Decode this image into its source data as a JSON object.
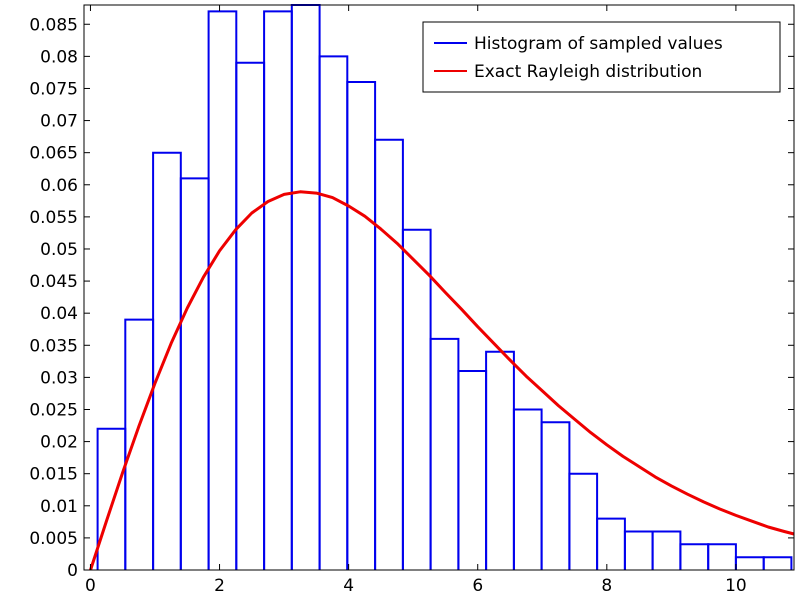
{
  "chart_data": {
    "type": "bar",
    "subtype": "step-histogram-with-density-curve",
    "title": "",
    "xlabel": "",
    "ylabel": "",
    "xlim": [
      -0.1,
      10.9
    ],
    "ylim": [
      0,
      0.088
    ],
    "xticks": [
      0,
      2,
      4,
      6,
      8,
      10
    ],
    "xtick_labels": [
      "0",
      "2",
      "4",
      "6",
      "8",
      "10"
    ],
    "yticks": [
      0,
      0.005,
      0.01,
      0.015,
      0.02,
      0.025,
      0.03,
      0.035,
      0.04,
      0.045,
      0.05,
      0.055,
      0.06,
      0.065,
      0.07,
      0.075,
      0.08,
      0.085
    ],
    "ytick_labels": [
      "0",
      "0.005",
      "0.01",
      "0.015",
      "0.02",
      "0.025",
      "0.03",
      "0.035",
      "0.04",
      "0.045",
      "0.05",
      "0.055",
      "0.06",
      "0.065",
      "0.07",
      "0.075",
      "0.08",
      "0.085"
    ],
    "grid": false,
    "legend_position": "top-right",
    "bin_edges": [
      0.11,
      0.54,
      0.97,
      1.4,
      1.83,
      2.26,
      2.69,
      3.12,
      3.55,
      3.98,
      4.41,
      4.84,
      5.27,
      5.7,
      6.13,
      6.56,
      6.99,
      7.42,
      7.85,
      8.28,
      8.71,
      9.14,
      9.57,
      10.0,
      10.43,
      10.86
    ],
    "series": [
      {
        "name": "Histogram of sampled values",
        "kind": "histogram",
        "color": "#0000ee",
        "values": [
          0.022,
          0.039,
          0.065,
          0.061,
          0.087,
          0.079,
          0.087,
          0.088,
          0.08,
          0.076,
          0.067,
          0.053,
          0.036,
          0.031,
          0.034,
          0.025,
          0.023,
          0.015,
          0.008,
          0.006,
          0.006,
          0.004,
          0.004,
          0.002,
          0.002
        ]
      },
      {
        "name": "Exact Rayleigh distribution",
        "kind": "line",
        "color": "#ee0000",
        "x": [
          0.0,
          0.25,
          0.5,
          0.75,
          1.0,
          1.25,
          1.5,
          1.75,
          2.0,
          2.25,
          2.5,
          2.75,
          3.0,
          3.25,
          3.5,
          3.75,
          4.0,
          4.25,
          4.5,
          4.75,
          5.0,
          5.25,
          5.5,
          5.75,
          6.0,
          6.25,
          6.5,
          6.75,
          7.0,
          7.25,
          7.5,
          7.75,
          8.0,
          8.25,
          8.5,
          8.75,
          9.0,
          9.25,
          9.5,
          9.75,
          10.0,
          10.25,
          10.5,
          10.75,
          10.9
        ],
        "y": [
          0.0,
          0.0077,
          0.0152,
          0.0224,
          0.0291,
          0.0353,
          0.0408,
          0.0456,
          0.0497,
          0.053,
          0.0556,
          0.0574,
          0.0585,
          0.0589,
          0.0587,
          0.058,
          0.0567,
          0.0551,
          0.0531,
          0.0509,
          0.0484,
          0.0459,
          0.0432,
          0.0406,
          0.0379,
          0.0353,
          0.0327,
          0.0302,
          0.0279,
          0.0256,
          0.0235,
          0.0214,
          0.0195,
          0.0177,
          0.0161,
          0.0145,
          0.0131,
          0.0118,
          0.0106,
          0.0095,
          0.0085,
          0.0076,
          0.0067,
          0.006,
          0.0056
        ]
      }
    ]
  }
}
